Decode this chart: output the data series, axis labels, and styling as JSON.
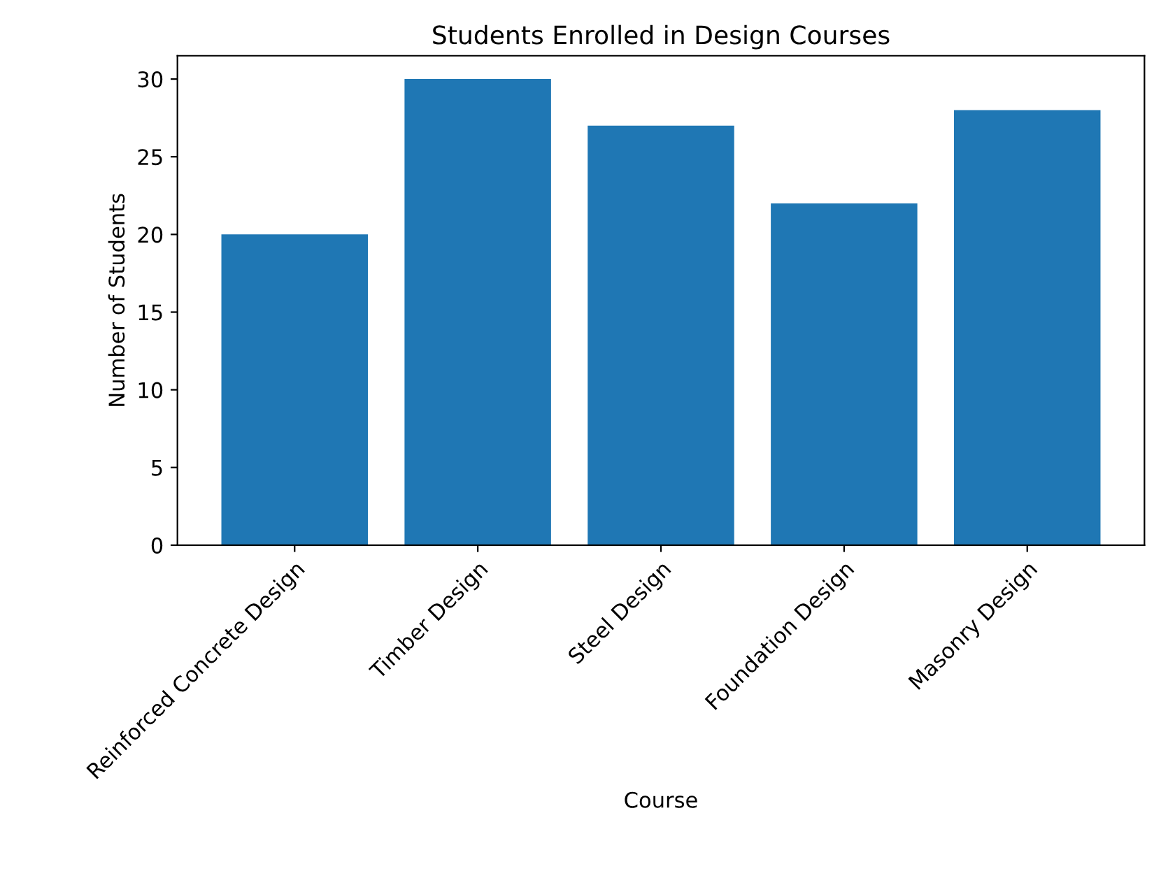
{
  "chart_data": {
    "type": "bar",
    "title": "Students Enrolled in Design Courses",
    "xlabel": "Course",
    "ylabel": "Number of Students",
    "categories": [
      "Reinforced Concrete Design",
      "Timber Design",
      "Steel Design",
      "Foundation Design",
      "Masonry Design"
    ],
    "values": [
      20,
      30,
      27,
      22,
      28
    ],
    "color": "#1f77b4",
    "ylim": [
      0,
      31.5
    ],
    "yticks": [
      0,
      5,
      10,
      15,
      20,
      25,
      30
    ],
    "grid": false
  }
}
